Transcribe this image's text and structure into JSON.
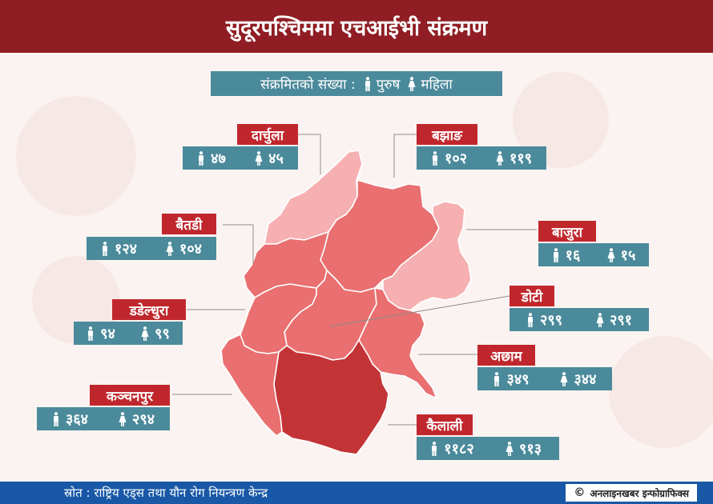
{
  "title": "सुदूरपश्चिममा एचआईभी संक्रमण",
  "legend": {
    "label": "संक्रमितको संख्या :",
    "male": "पुरुष",
    "female": "महिला"
  },
  "colors": {
    "header": "#8f1d23",
    "label_bg": "#c0272d",
    "stat_bg": "#4b8a9b",
    "footer": "#1858a6",
    "map_low": "#f6b0b2",
    "map_mid": "#e96f70",
    "map_high": "#c33437"
  },
  "districts": [
    {
      "name": "दार्चुला",
      "male": "४७",
      "female": "४५"
    },
    {
      "name": "बझाङ",
      "male": "१०२",
      "female": "११९"
    },
    {
      "name": "बैतडी",
      "male": "१२४",
      "female": "१०४"
    },
    {
      "name": "बाजुरा",
      "male": "१६",
      "female": "१५"
    },
    {
      "name": "डोटी",
      "male": "२९९",
      "female": "२९१"
    },
    {
      "name": "डडेल्धुरा",
      "male": "९४",
      "female": "९९"
    },
    {
      "name": "अछाम",
      "male": "३४९",
      "female": "३४४"
    },
    {
      "name": "कञ्चनपुर",
      "male": "३६४",
      "female": "२९४"
    },
    {
      "name": "कैलाली",
      "male": "११८२",
      "female": "९१३"
    }
  ],
  "footer": {
    "source": "स्रोत : राष्ट्रिय एड्स तथा यौन रोग नियन्त्रण केन्द्र",
    "credit_icon": "copyright-icon",
    "credit": "अनलाइनखबर इन्फोग्राफिक्स"
  }
}
